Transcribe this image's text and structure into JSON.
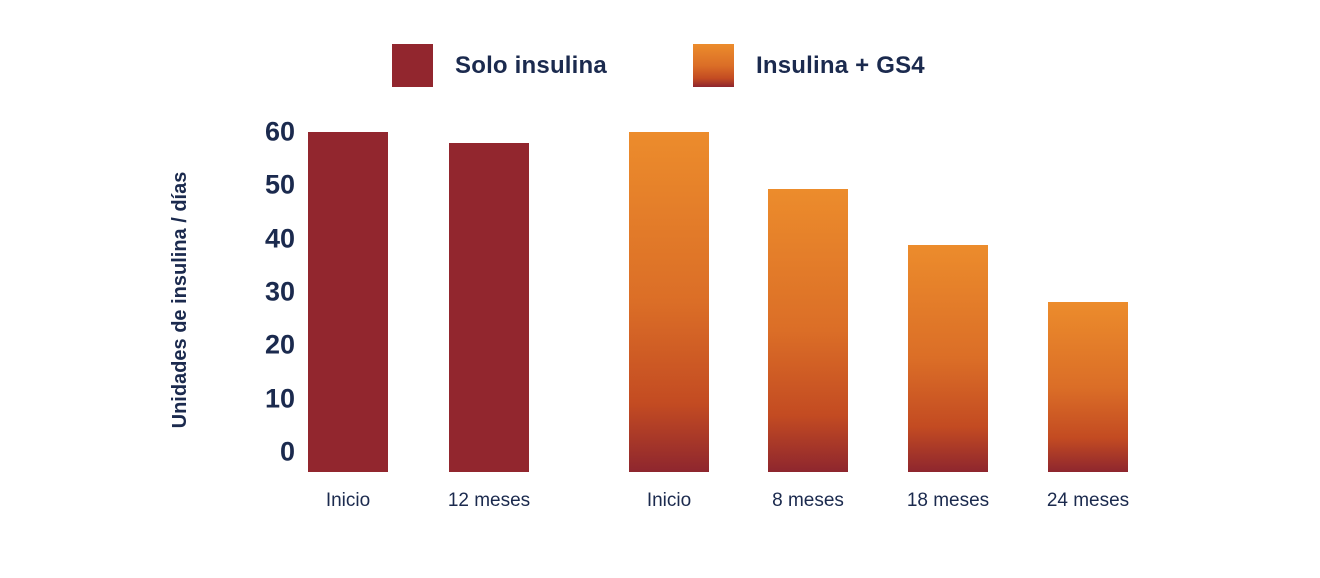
{
  "chart_data": {
    "type": "bar",
    "title": "",
    "xlabel": "",
    "ylabel": "Unidades de insulina / días",
    "ylim": [
      0,
      60
    ],
    "yticks": [
      60,
      50,
      40,
      30,
      20,
      10,
      0
    ],
    "grid": false,
    "legend_position": "top",
    "categories": [
      "Inicio",
      "12 meses",
      "Inicio",
      "8 meses",
      "18 meses",
      "24 meses"
    ],
    "series": [
      {
        "name": "Solo insulina",
        "fill": "solid",
        "color": "#92262E",
        "points": [
          {
            "label": "Inicio",
            "value": 60
          },
          {
            "label": "12 meses",
            "value": 58
          }
        ]
      },
      {
        "name": "Insulina + GS4",
        "fill": "gradient",
        "gradient": [
          "#EC8C2C",
          "#DB6E27",
          "#C34B22",
          "#8E262E"
        ],
        "points": [
          {
            "label": "Inicio",
            "value": 60
          },
          {
            "label": "8 meses",
            "value": 50
          },
          {
            "label": "18 meses",
            "value": 40
          },
          {
            "label": "24 meses",
            "value": 30
          }
        ]
      }
    ]
  },
  "legend": {
    "items": [
      {
        "label": "Solo insulina"
      },
      {
        "label": "Insulina + GS4"
      }
    ]
  },
  "colors": {
    "text_navy": "#1B2A4E",
    "dark_red": "#92262E",
    "orange_top": "#EC8C2C",
    "orange_mid": "#DB6E27",
    "orange_deep": "#C34B22",
    "red_bottom": "#8E262E",
    "background": "#FFFFFF"
  }
}
